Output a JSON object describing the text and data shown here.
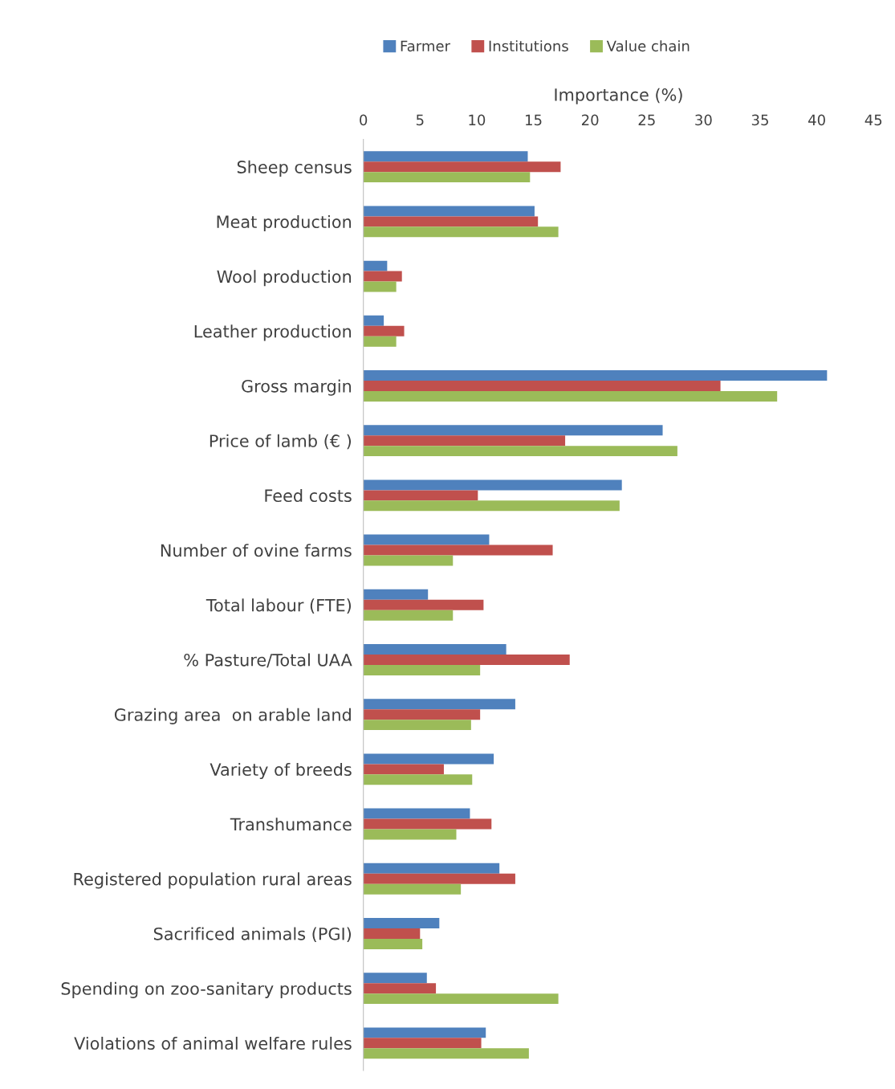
{
  "chart_data": {
    "type": "bar",
    "orientation": "horizontal",
    "xlabel": "Importance (%)",
    "categories": [
      "Sheep census",
      "Meat production",
      "Wool production",
      "Leather production",
      "Gross margin",
      "Price of lamb (€ )",
      "Feed costs",
      "Number of ovine farms",
      "Total labour (FTE)",
      "% Pasture/Total UAA",
      "Grazing area  on arable land",
      "Variety of breeds",
      "Transhumance",
      "Registered population rural areas",
      "Sacrificed animals (PGI)",
      "Spending on zoo-sanitary products",
      "Violations of animal welfare rules"
    ],
    "series": [
      {
        "name": "Farmer",
        "color": "#4f81bd",
        "values": [
          14.5,
          15.1,
          2.1,
          1.8,
          40.9,
          26.4,
          22.8,
          11.1,
          5.7,
          12.6,
          13.4,
          11.5,
          9.4,
          12.0,
          6.7,
          5.6,
          10.8
        ]
      },
      {
        "name": "Institutions",
        "color": "#c0504d",
        "values": [
          17.4,
          15.4,
          3.4,
          3.6,
          31.5,
          17.8,
          10.1,
          16.7,
          10.6,
          18.2,
          10.3,
          7.1,
          11.3,
          13.4,
          5.0,
          6.4,
          10.4
        ]
      },
      {
        "name": "Value chain",
        "color": "#9bbb59",
        "values": [
          14.7,
          17.2,
          2.9,
          2.9,
          36.5,
          27.7,
          22.6,
          7.9,
          7.9,
          10.3,
          9.5,
          9.6,
          8.2,
          8.6,
          5.2,
          17.2,
          14.6
        ]
      }
    ],
    "xlim": [
      0,
      45
    ],
    "xticks": [
      0,
      5,
      10,
      15,
      20,
      25,
      30,
      35,
      40,
      45
    ],
    "grid": false,
    "legend": "top"
  }
}
